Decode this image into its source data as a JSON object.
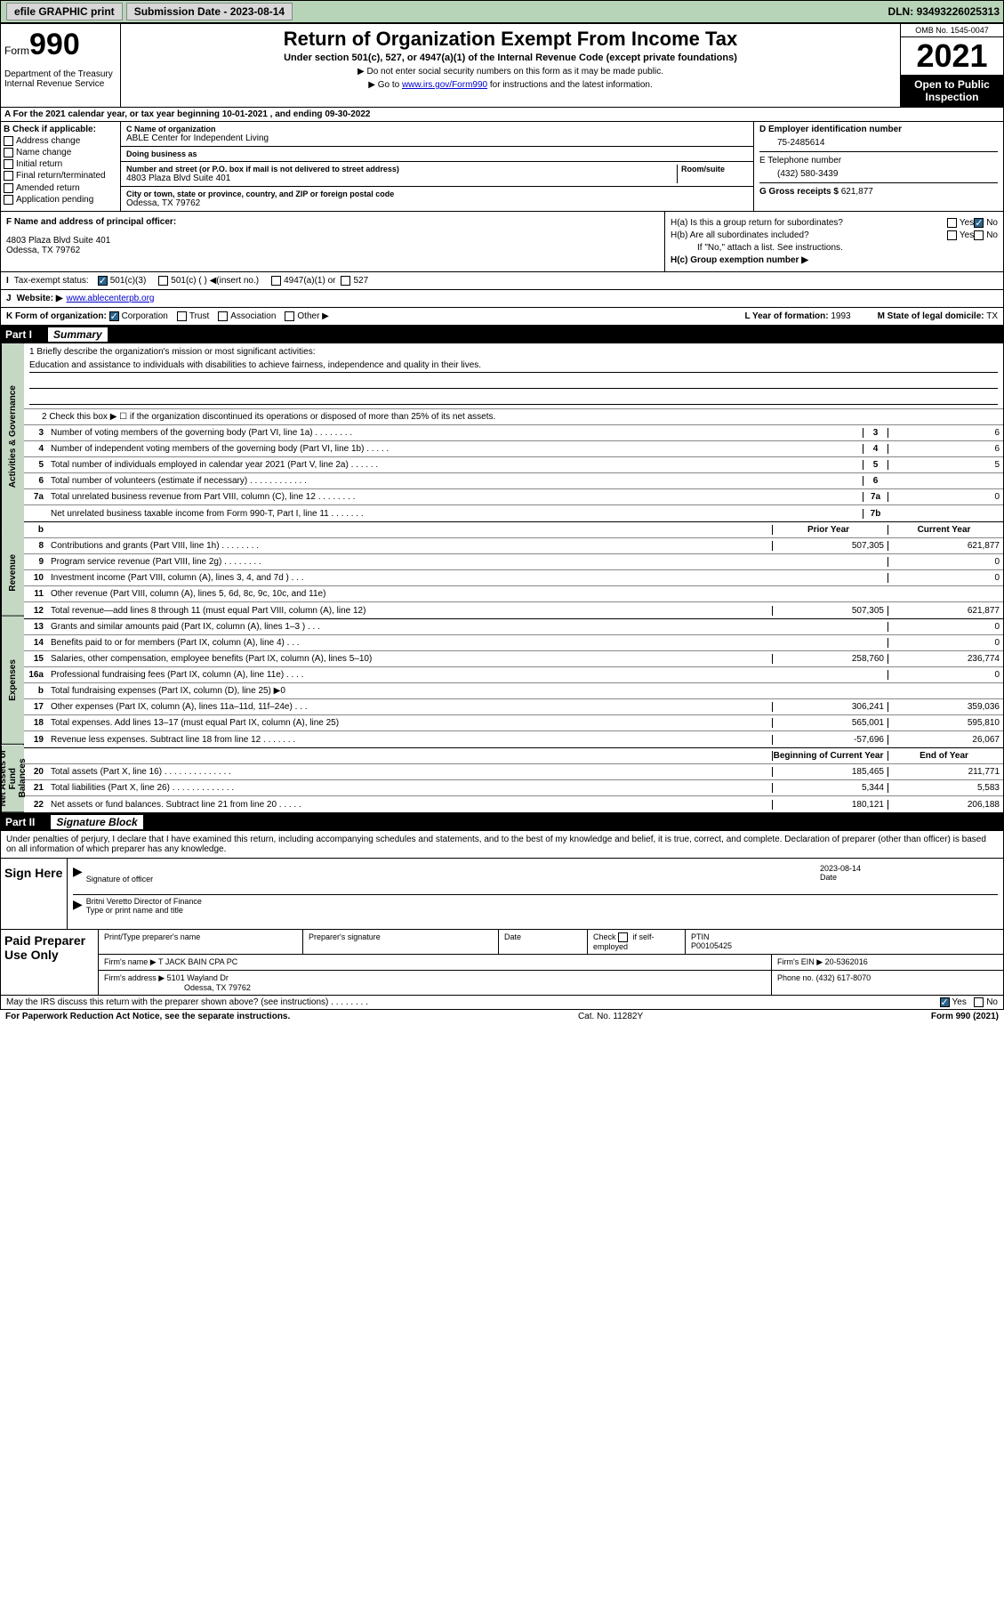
{
  "topbar": {
    "efile": "efile GRAPHIC print",
    "submission_label": "Submission Date - 2023-08-14",
    "dln_label": "DLN:",
    "dln": "93493226025313"
  },
  "header": {
    "form_prefix": "Form",
    "form_num": "990",
    "dept": "Department of the Treasury\nInternal Revenue Service",
    "title": "Return of Organization Exempt From Income Tax",
    "sub": "Under section 501(c), 527, or 4947(a)(1) of the Internal Revenue Code (except private foundations)",
    "note1": "▶ Do not enter social security numbers on this form as it may be made public.",
    "note2_pre": "▶ Go to ",
    "note2_link": "www.irs.gov/Form990",
    "note2_post": " for instructions and the latest information.",
    "omb": "OMB No. 1545-0047",
    "year": "2021",
    "open": "Open to Public Inspection"
  },
  "row_a": "A For the 2021 calendar year, or tax year beginning 10-01-2021   , and ending 09-30-2022",
  "section_b": {
    "label": "B Check if applicable:",
    "items": [
      "Address change",
      "Name change",
      "Initial return",
      "Final return/terminated",
      "Amended return",
      "Application pending"
    ]
  },
  "section_c": {
    "name_label": "C Name of organization",
    "name": "ABLE Center for Independent Living",
    "dba_label": "Doing business as",
    "dba": "",
    "street_label": "Number and street (or P.O. box if mail is not delivered to street address)",
    "room_label": "Room/suite",
    "street": "4803 Plaza Blvd Suite 401",
    "city_label": "City or town, state or province, country, and ZIP or foreign postal code",
    "city": "Odessa, TX  79762"
  },
  "section_d": {
    "ein_label": "D Employer identification number",
    "ein": "75-2485614",
    "phone_label": "E Telephone number",
    "phone": "(432) 580-3439",
    "gross_label": "G Gross receipts $",
    "gross": "621,877"
  },
  "section_f": {
    "label": "F Name and address of principal officer:",
    "addr1": "4803 Plaza Blvd Suite 401",
    "addr2": "Odessa, TX  79762"
  },
  "section_h": {
    "ha_label": "H(a)  Is this a group return for subordinates?",
    "ha_yes": "Yes",
    "ha_no": "No",
    "hb_label": "H(b)  Are all subordinates included?",
    "hb_yes": "Yes",
    "hb_no": "No",
    "hb_note": "If \"No,\" attach a list. See instructions.",
    "hc_label": "H(c)  Group exemption number ▶"
  },
  "row_i": {
    "label": "I",
    "text": "Tax-exempt status:",
    "opt1": "501(c)(3)",
    "opt2": "501(c) (  ) ◀(insert no.)",
    "opt3": "4947(a)(1) or",
    "opt4": "527"
  },
  "row_j": {
    "label": "J",
    "text": "Website: ▶",
    "url": "www.ablecenterpb.org"
  },
  "row_k": {
    "label": "K Form of organization:",
    "opts": [
      "Corporation",
      "Trust",
      "Association",
      "Other ▶"
    ],
    "year_label": "L Year of formation:",
    "year": "1993",
    "state_label": "M State of legal domicile:",
    "state": "TX"
  },
  "part1": {
    "hdr": "Part I",
    "title": "Summary"
  },
  "vtabs": {
    "gov": "Activities & Governance",
    "rev": "Revenue",
    "exp": "Expenses",
    "net": "Net Assets or Fund Balances"
  },
  "mission": {
    "label": "1  Briefly describe the organization's mission or most significant activities:",
    "text": "Education and assistance to individuals with disabilities to achieve fairness, independence and quality in their lives."
  },
  "governance": {
    "line2": "2  Check this box ▶ ☐  if the organization discontinued its operations or disposed of more than 25% of its net assets.",
    "lines": [
      {
        "n": "3",
        "d": "Number of voting members of the governing body (Part VI, line 1a)  .  .  .  .  .  .  .  .",
        "c": "3",
        "v": "6"
      },
      {
        "n": "4",
        "d": "Number of independent voting members of the governing body (Part VI, line 1b)  .  .  .  .  .",
        "c": "4",
        "v": "6"
      },
      {
        "n": "5",
        "d": "Total number of individuals employed in calendar year 2021 (Part V, line 2a)  .  .  .  .  .  .",
        "c": "5",
        "v": "5"
      },
      {
        "n": "6",
        "d": "Total number of volunteers (estimate if necessary)  .  .  .  .  .  .  .  .  .  .  .  .",
        "c": "6",
        "v": ""
      },
      {
        "n": "7a",
        "d": "Total unrelated business revenue from Part VIII, column (C), line 12  .  .  .  .  .  .  .  .",
        "c": "7a",
        "v": "0"
      },
      {
        "n": "",
        "d": "Net unrelated business taxable income from Form 990-T, Part I, line 11  .  .  .  .  .  .  .",
        "c": "7b",
        "v": ""
      }
    ]
  },
  "colhdr": {
    "b": "b",
    "prior": "Prior Year",
    "current": "Current Year"
  },
  "revenue": [
    {
      "n": "8",
      "d": "Contributions and grants (Part VIII, line 1h)  .  .  .  .  .  .  .  .",
      "p": "507,305",
      "c": "621,877"
    },
    {
      "n": "9",
      "d": "Program service revenue (Part VIII, line 2g)  .  .  .  .  .  .  .  .",
      "p": "",
      "c": "0"
    },
    {
      "n": "10",
      "d": "Investment income (Part VIII, column (A), lines 3, 4, and 7d )  .  .  .",
      "p": "",
      "c": "0"
    },
    {
      "n": "11",
      "d": "Other revenue (Part VIII, column (A), lines 5, 6d, 8c, 9c, 10c, and 11e)",
      "p": "",
      "c": ""
    },
    {
      "n": "12",
      "d": "Total revenue—add lines 8 through 11 (must equal Part VIII, column (A), line 12)",
      "p": "507,305",
      "c": "621,877"
    }
  ],
  "expenses": [
    {
      "n": "13",
      "d": "Grants and similar amounts paid (Part IX, column (A), lines 1–3 )  .  .  .",
      "p": "",
      "c": "0"
    },
    {
      "n": "14",
      "d": "Benefits paid to or for members (Part IX, column (A), line 4)  .  .  .",
      "p": "",
      "c": "0"
    },
    {
      "n": "15",
      "d": "Salaries, other compensation, employee benefits (Part IX, column (A), lines 5–10)",
      "p": "258,760",
      "c": "236,774"
    },
    {
      "n": "16a",
      "d": "Professional fundraising fees (Part IX, column (A), line 11e)  .  .  .  .",
      "p": "",
      "c": "0"
    },
    {
      "n": "b",
      "d": "Total fundraising expenses (Part IX, column (D), line 25) ▶0",
      "p": "shade",
      "c": "shade"
    },
    {
      "n": "17",
      "d": "Other expenses (Part IX, column (A), lines 11a–11d, 11f–24e)  .  .  .",
      "p": "306,241",
      "c": "359,036"
    },
    {
      "n": "18",
      "d": "Total expenses. Add lines 13–17 (must equal Part IX, column (A), line 25)",
      "p": "565,001",
      "c": "595,810"
    },
    {
      "n": "19",
      "d": "Revenue less expenses. Subtract line 18 from line 12  .  .  .  .  .  .  .",
      "p": "-57,696",
      "c": "26,067"
    }
  ],
  "nethdr": {
    "beg": "Beginning of Current Year",
    "end": "End of Year"
  },
  "netassets": [
    {
      "n": "20",
      "d": "Total assets (Part X, line 16)  .  .  .  .  .  .  .  .  .  .  .  .  .  .",
      "p": "185,465",
      "c": "211,771"
    },
    {
      "n": "21",
      "d": "Total liabilities (Part X, line 26)  .  .  .  .  .  .  .  .  .  .  .  .  .",
      "p": "5,344",
      "c": "5,583"
    },
    {
      "n": "22",
      "d": "Net assets or fund balances. Subtract line 21 from line 20  .  .  .  .  .",
      "p": "180,121",
      "c": "206,188"
    }
  ],
  "part2": {
    "hdr": "Part II",
    "title": "Signature Block",
    "decl": "Under penalties of perjury, I declare that I have examined this return, including accompanying schedules and statements, and to the best of my knowledge and belief, it is true, correct, and complete. Declaration of preparer (other than officer) is based on all information of which preparer has any knowledge."
  },
  "sign": {
    "label": "Sign Here",
    "sig_label": "Signature of officer",
    "date_label": "Date",
    "date": "2023-08-14",
    "name": "Britni Veretto Director of Finance",
    "name_label": "Type or print name and title"
  },
  "paid": {
    "label": "Paid Preparer Use Only",
    "h1": "Print/Type preparer's name",
    "h2": "Preparer's signature",
    "h3": "Date",
    "h4_pre": "Check",
    "h4_post": "if self-employed",
    "h5": "PTIN",
    "ptin": "P00105425",
    "firm_label": "Firm's name    ▶",
    "firm": "T JACK BAIN CPA PC",
    "ein_label": "Firm's EIN ▶",
    "ein": "20-5362016",
    "addr_label": "Firm's address ▶",
    "addr1": "5101 Wayland Dr",
    "addr2": "Odessa, TX  79762",
    "phone_label": "Phone no.",
    "phone": "(432) 617-8070"
  },
  "footer": {
    "discuss": "May the IRS discuss this return with the preparer shown above? (see instructions)  .  .  .  .  .  .  .  .",
    "yes": "Yes",
    "no": "No",
    "paperwork": "For Paperwork Reduction Act Notice, see the separate instructions.",
    "cat": "Cat. No. 11282Y",
    "form": "Form 990 (2021)"
  }
}
